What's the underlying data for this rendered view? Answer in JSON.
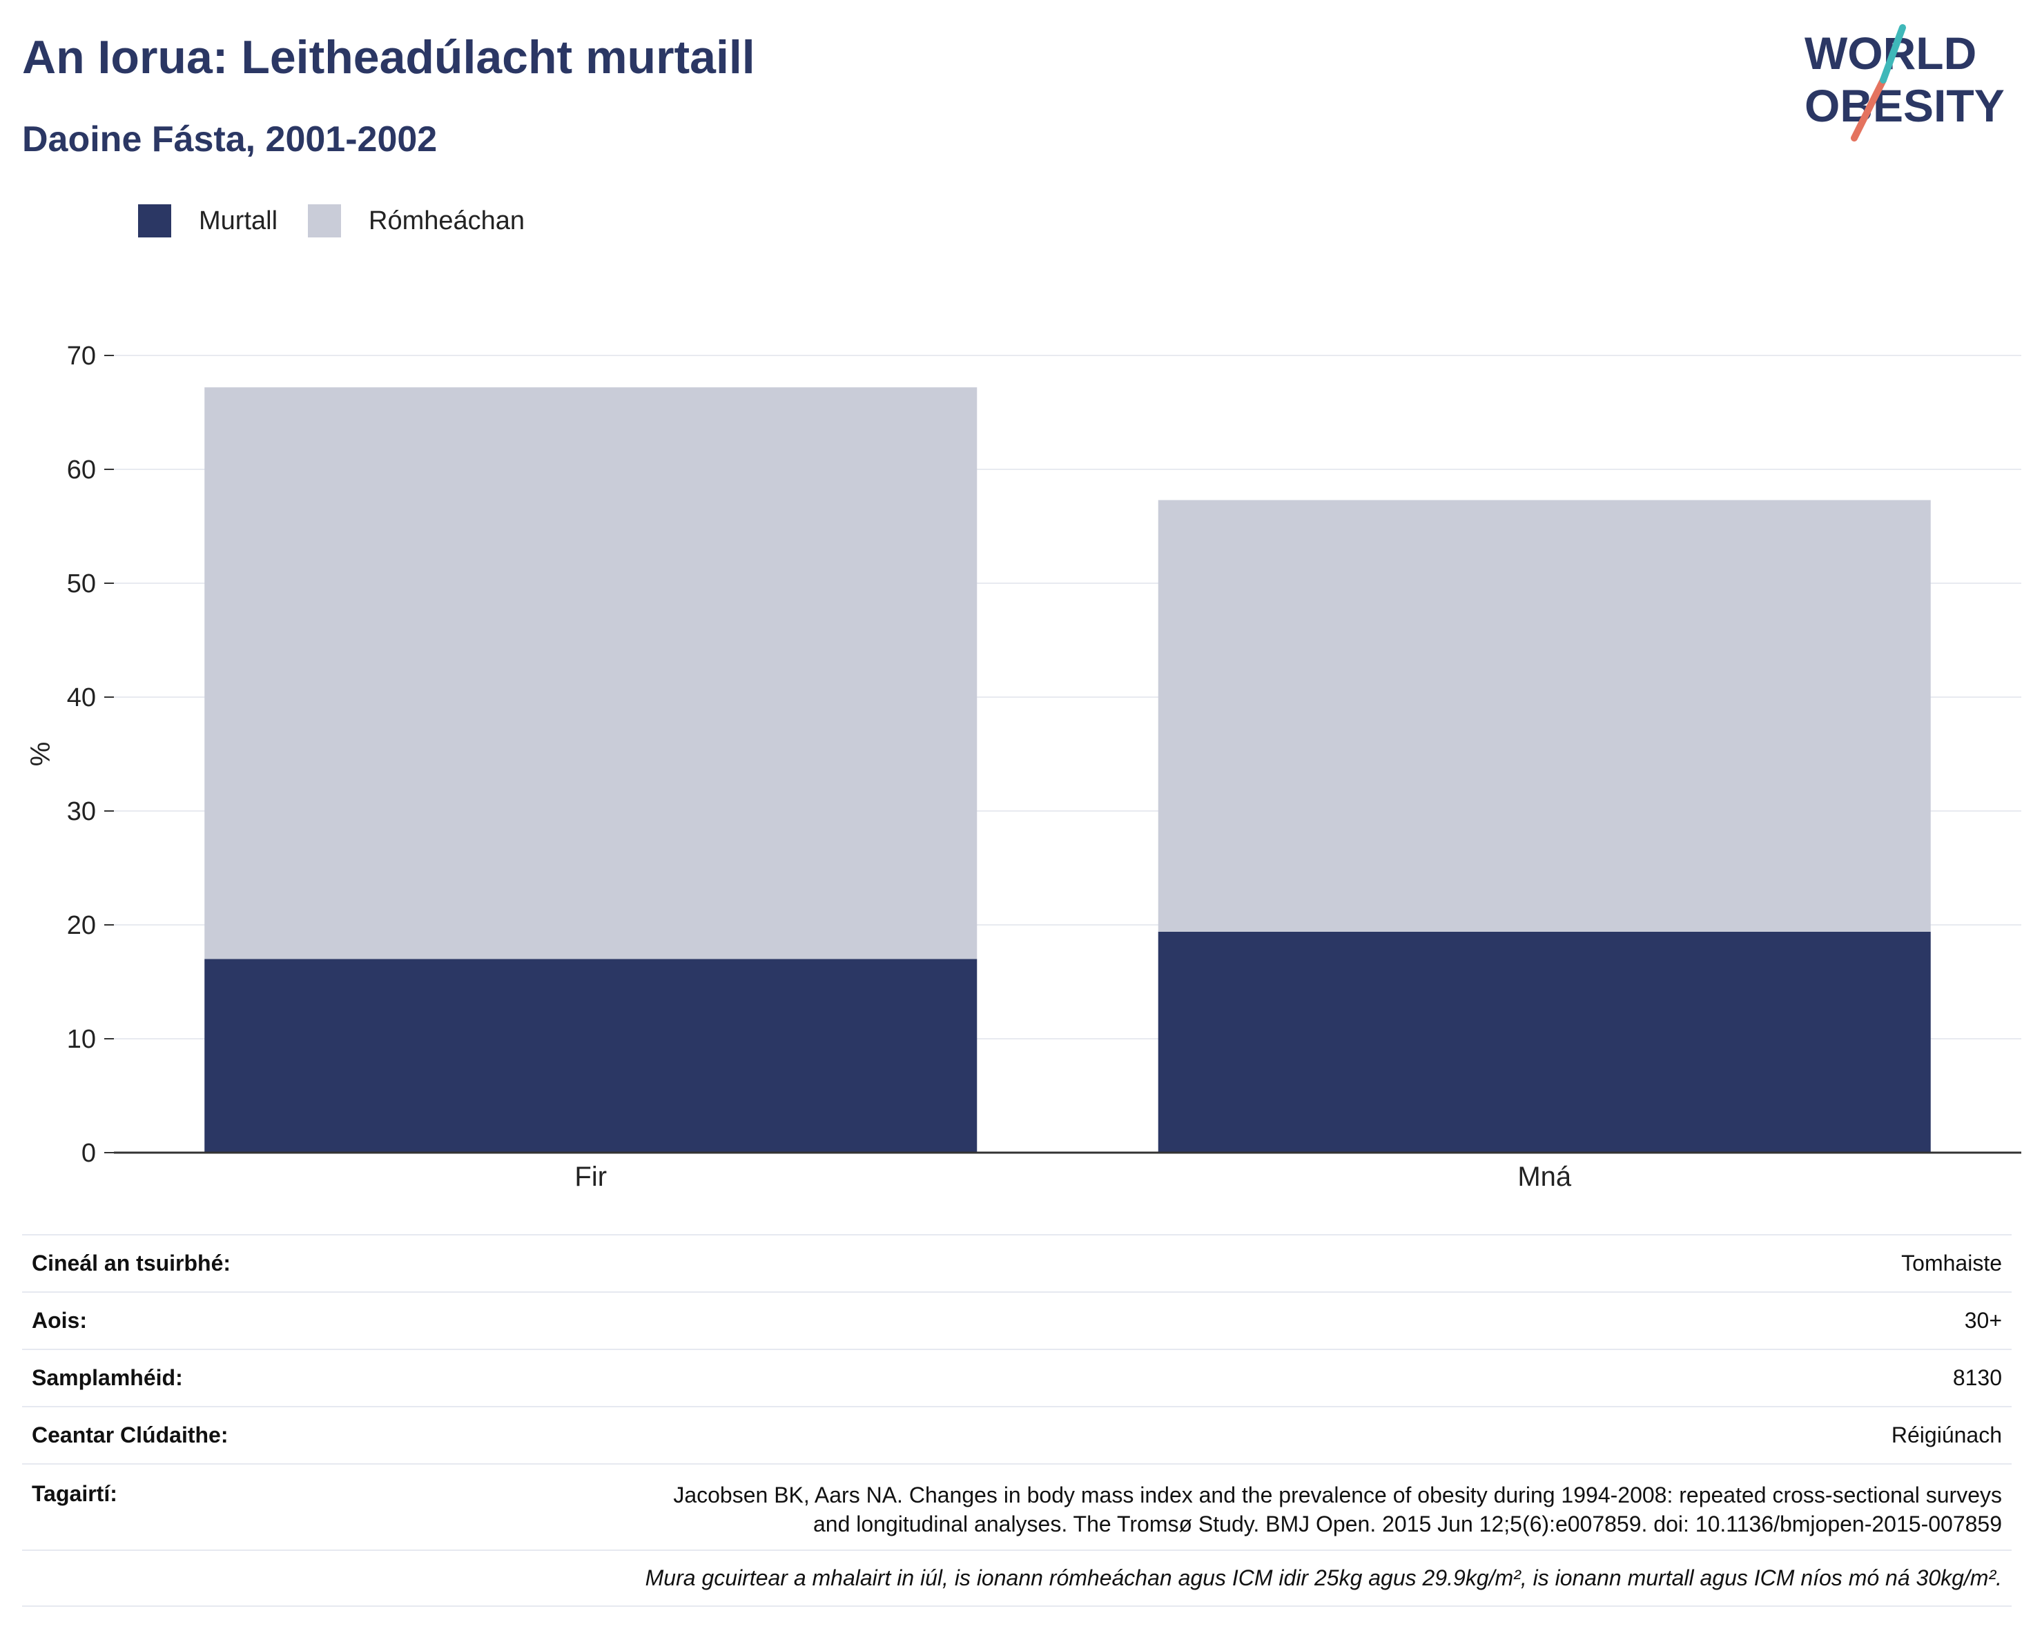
{
  "header": {
    "title": "An Iorua: Leitheadúlacht murtaill",
    "subtitle": "Daoine Fásta, 2001-2002"
  },
  "logo": {
    "line1": "WORLD",
    "line2": "OBESITY",
    "colors": [
      "#2b3764",
      "#e4735f",
      "#3fb8b9"
    ]
  },
  "colors": {
    "obese": "#2b3764",
    "overweight": "#c9ccd8",
    "text": "#2b3764"
  },
  "chart_data": {
    "type": "bar",
    "stacked": true,
    "categories": [
      "Fir",
      "Mná"
    ],
    "series": [
      {
        "name": "Murtall",
        "values": [
          17.0,
          19.4
        ],
        "color": "#2b3764"
      },
      {
        "name": "Rómheáchan",
        "values": [
          50.2,
          37.9
        ],
        "color": "#c9ccd8"
      }
    ],
    "ylabel": "%",
    "ylim": [
      0,
      70
    ],
    "yticks": [
      0,
      10,
      20,
      30,
      40,
      50,
      60,
      70
    ],
    "grid": true,
    "legend_position": "top-left"
  },
  "meta": {
    "survey_type_label": "Cineál an tsuirbhé:",
    "survey_type_value": "Tomhaiste",
    "age_label": "Aois:",
    "age_value": "30+",
    "sample_label": "Samplamhéid:",
    "sample_value": "8130",
    "area_label": "Ceantar Clúdaithe:",
    "area_value": "Réigiúnach",
    "refs_label": "Tagairtí:",
    "refs_line1": "Jacobsen BK, Aars NA. Changes in body mass index and the prevalence of obesity during 1994-2008: repeated cross-sectional surveys",
    "refs_line2": "and longitudinal analyses. The Tromsø Study. BMJ Open. 2015 Jun 12;5(6):e007859. doi: 10.1136/bmjopen-2015-007859",
    "note": "Mura gcuirtear a mhalairt in iúl, is ionann rómheáchan agus ICM idir 25kg agus 29.9kg/m², is ionann murtall agus ICM níos mó ná 30kg/m²."
  }
}
